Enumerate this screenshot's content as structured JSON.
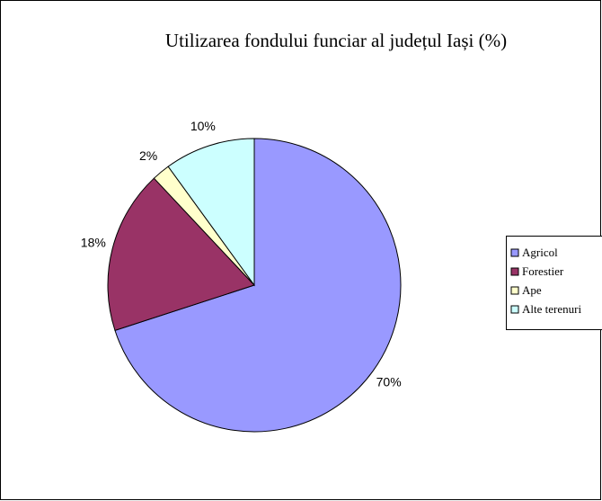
{
  "chart_data": {
    "type": "pie",
    "title": "Utilizarea fondului funciar al județul Iași (%)",
    "categories": [
      "Agricol",
      "Forestier",
      "Ape",
      "Alte terenuri"
    ],
    "values": [
      70,
      18,
      2,
      10
    ],
    "value_labels": [
      "70%",
      "18%",
      "2%",
      "10%"
    ],
    "colors": [
      "#9999ff",
      "#993366",
      "#ffffcc",
      "#ccffff"
    ],
    "legend": "right"
  }
}
